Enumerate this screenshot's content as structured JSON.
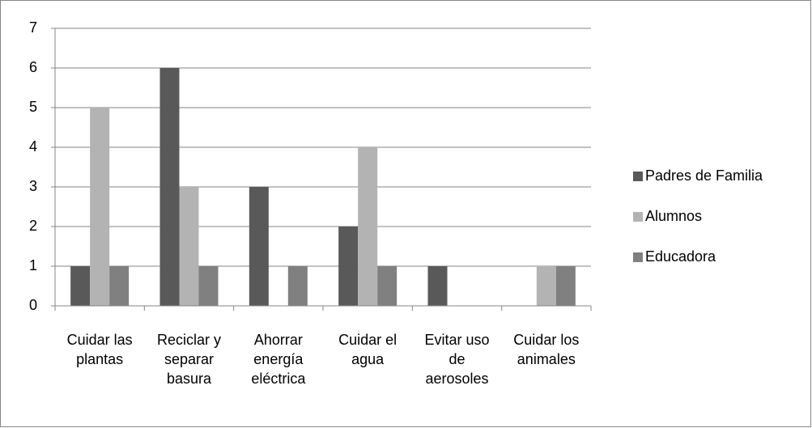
{
  "chart_data": {
    "type": "bar",
    "categories": [
      "Cuidar las\nplantas",
      "Reciclar y\nseparar\nbasura",
      "Ahorrar\nenergía\neléctrica",
      "Cuidar el\nagua",
      "Evitar uso\nde\naerosoles",
      "Cuidar los\nanimales"
    ],
    "series": [
      {
        "name": "Padres de Familia",
        "color": "#595959",
        "values": [
          1,
          6,
          3,
          2,
          1,
          0
        ]
      },
      {
        "name": "Alumnos",
        "color": "#b3b3b3",
        "values": [
          5,
          3,
          0,
          4,
          0,
          1
        ]
      },
      {
        "name": "Educadora",
        "color": "#808080",
        "values": [
          1,
          1,
          1,
          1,
          0,
          1
        ]
      }
    ],
    "ylim": [
      0,
      7
    ],
    "yticks": [
      0,
      1,
      2,
      3,
      4,
      5,
      6,
      7
    ],
    "grid": true,
    "legend": "right"
  }
}
